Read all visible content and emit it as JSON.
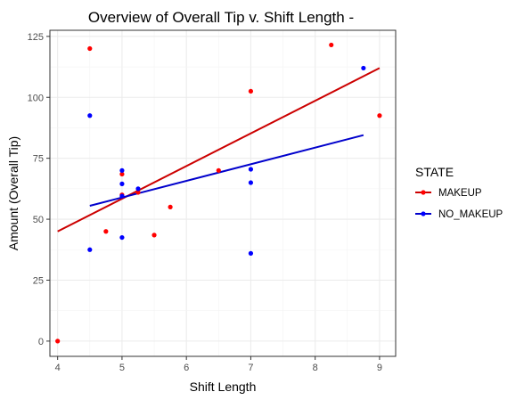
{
  "chart_data": {
    "type": "scatter",
    "title": "Overview of Overall Tip v. Shift Length -",
    "xlabel": "Shift Length",
    "ylabel": "Amount (Overall Tip)",
    "xlim": [
      3.88,
      9.25
    ],
    "ylim": [
      -6.25,
      127.5
    ],
    "xticks": [
      4,
      5,
      6,
      7,
      8,
      9
    ],
    "yticks": [
      0,
      25,
      50,
      75,
      100,
      125
    ],
    "grid": true,
    "legend": {
      "title": "STATE",
      "position": "right"
    },
    "series": [
      {
        "name": "MAKEUP",
        "color": "#ff0000",
        "line_color": "#cc0000",
        "points": [
          {
            "x": 4.0,
            "y": 0
          },
          {
            "x": 4.5,
            "y": 120
          },
          {
            "x": 4.75,
            "y": 45
          },
          {
            "x": 5.0,
            "y": 60
          },
          {
            "x": 5.0,
            "y": 68.5
          },
          {
            "x": 5.25,
            "y": 61
          },
          {
            "x": 5.5,
            "y": 43.5
          },
          {
            "x": 5.75,
            "y": 55
          },
          {
            "x": 6.5,
            "y": 70
          },
          {
            "x": 7.0,
            "y": 102.5
          },
          {
            "x": 8.25,
            "y": 121.5
          },
          {
            "x": 9.0,
            "y": 92.5
          }
        ],
        "trend": {
          "x1": 4.0,
          "y1": 45,
          "x2": 9.0,
          "y2": 112
        }
      },
      {
        "name": "NO_MAKEUP",
        "color": "#0000ff",
        "line_color": "#0000cc",
        "points": [
          {
            "x": 4.5,
            "y": 92.5
          },
          {
            "x": 4.5,
            "y": 37.5
          },
          {
            "x": 5.0,
            "y": 70
          },
          {
            "x": 5.0,
            "y": 64.5
          },
          {
            "x": 5.0,
            "y": 59.5
          },
          {
            "x": 5.0,
            "y": 42.5
          },
          {
            "x": 5.25,
            "y": 62.5
          },
          {
            "x": 7.0,
            "y": 70.5
          },
          {
            "x": 7.0,
            "y": 65
          },
          {
            "x": 7.0,
            "y": 36
          },
          {
            "x": 8.75,
            "y": 112
          }
        ],
        "trend": {
          "x1": 4.5,
          "y1": 55.5,
          "x2": 8.75,
          "y2": 84.5
        }
      }
    ]
  }
}
